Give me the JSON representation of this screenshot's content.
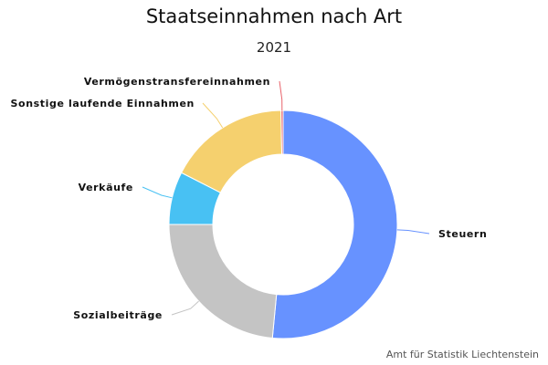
{
  "chart_data": {
    "type": "pie",
    "variant": "donut",
    "title": "Staatseinnahmen nach Art",
    "subtitle": "2021",
    "categories": [
      "Steuern",
      "Sozialbeiträge",
      "Verkäufe",
      "Sonstige laufende Einnahmen",
      "Vermögenstransfereinnahmen"
    ],
    "values": [
      51.5,
      23.5,
      7.5,
      17.2,
      0.3
    ],
    "unit": "%",
    "colors": [
      "#6792ff",
      "#c4c4c4",
      "#48c1f3",
      "#f5d06e",
      "#e8636b"
    ],
    "start_angle_deg": 0,
    "direction": "clockwise"
  },
  "credit": "Amt für Statistik Liechtenstein"
}
